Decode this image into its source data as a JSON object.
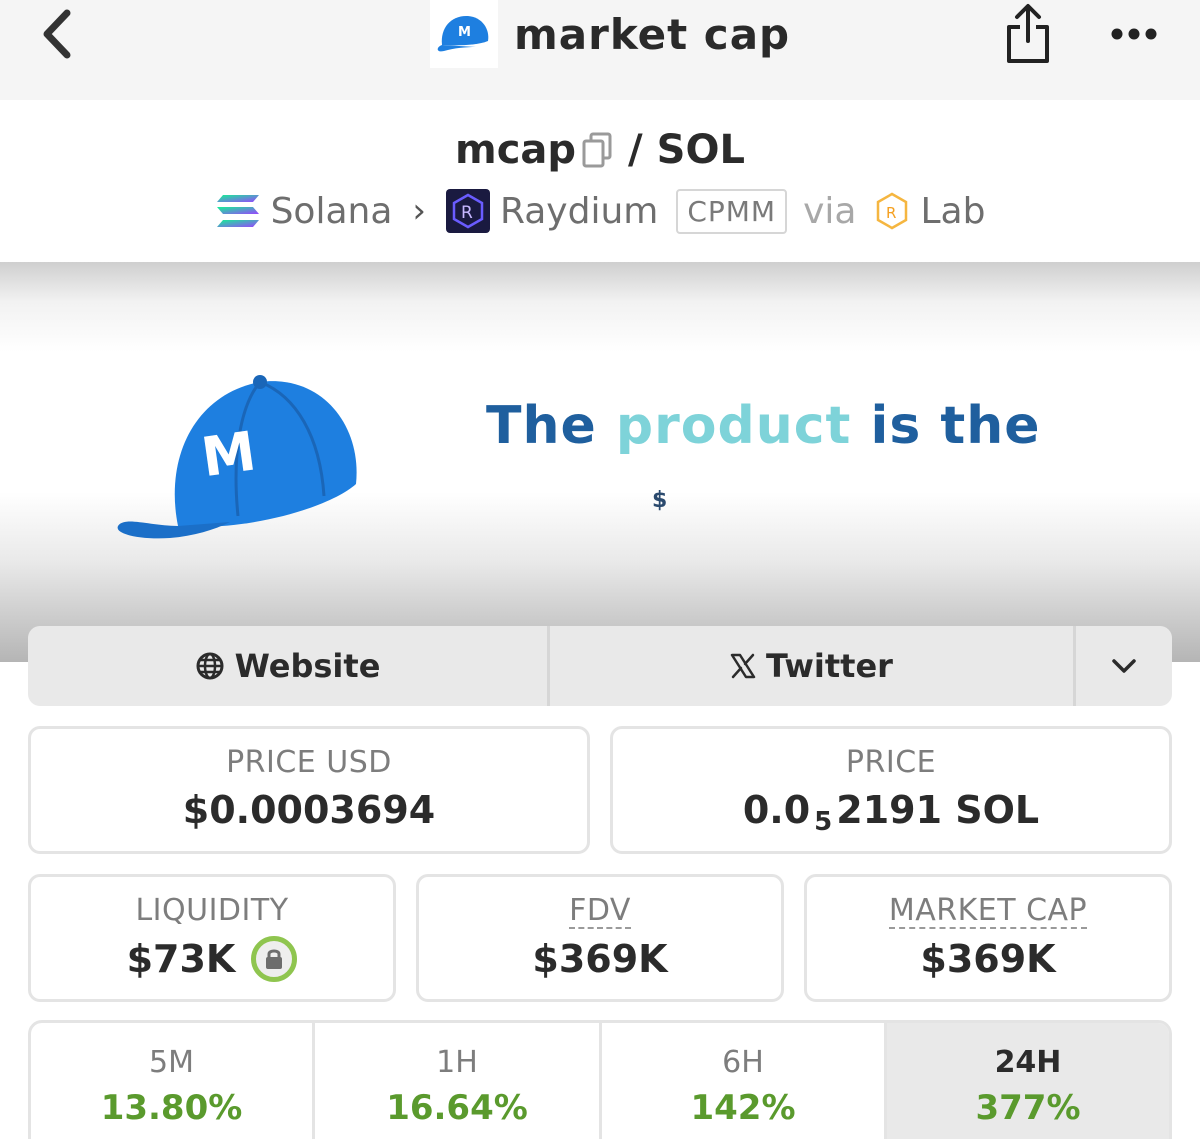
{
  "navbar": {
    "title": "market cap",
    "back_icon": "chevron-left-icon",
    "share_icon": "share-icon",
    "more_icon": "more-horizontal-icon",
    "logo_letter": "M",
    "logo_color": "#1e7fe0"
  },
  "pair": {
    "base": "mcap",
    "separator": "/",
    "quote": "SOL"
  },
  "chain": {
    "network": "Solana",
    "dex": "Raydium",
    "pool_type": "CPMM",
    "via": "via",
    "launchpad": "Lab"
  },
  "banner": {
    "cap_letter": "M",
    "text_part1": "The",
    "text_part2": "product",
    "text_part3": "is the",
    "sub_text": "$",
    "cap_color": "#1e7fe0"
  },
  "links": {
    "website_label": "Website",
    "twitter_label": "Twitter"
  },
  "stats": {
    "price_usd_label": "PRICE USD",
    "price_usd_value": "$0.0003694",
    "price_label": "PRICE",
    "price_value_prefix": "0.0",
    "price_value_sub": "5",
    "price_value_suffix": "2191 SOL",
    "liquidity_label": "LIQUIDITY",
    "liquidity_value": "$73K",
    "fdv_label": "FDV",
    "fdv_value": "$369K",
    "market_cap_label": "MARKET CAP",
    "market_cap_value": "$369K"
  },
  "changes": [
    {
      "label": "5M",
      "value": "13.80%"
    },
    {
      "label": "1H",
      "value": "16.64%"
    },
    {
      "label": "6H",
      "value": "142%"
    },
    {
      "label": "24H",
      "value": "377%"
    }
  ],
  "colors": {
    "positive": "#5a9a2d",
    "lock_ring": "#8fc54f"
  }
}
